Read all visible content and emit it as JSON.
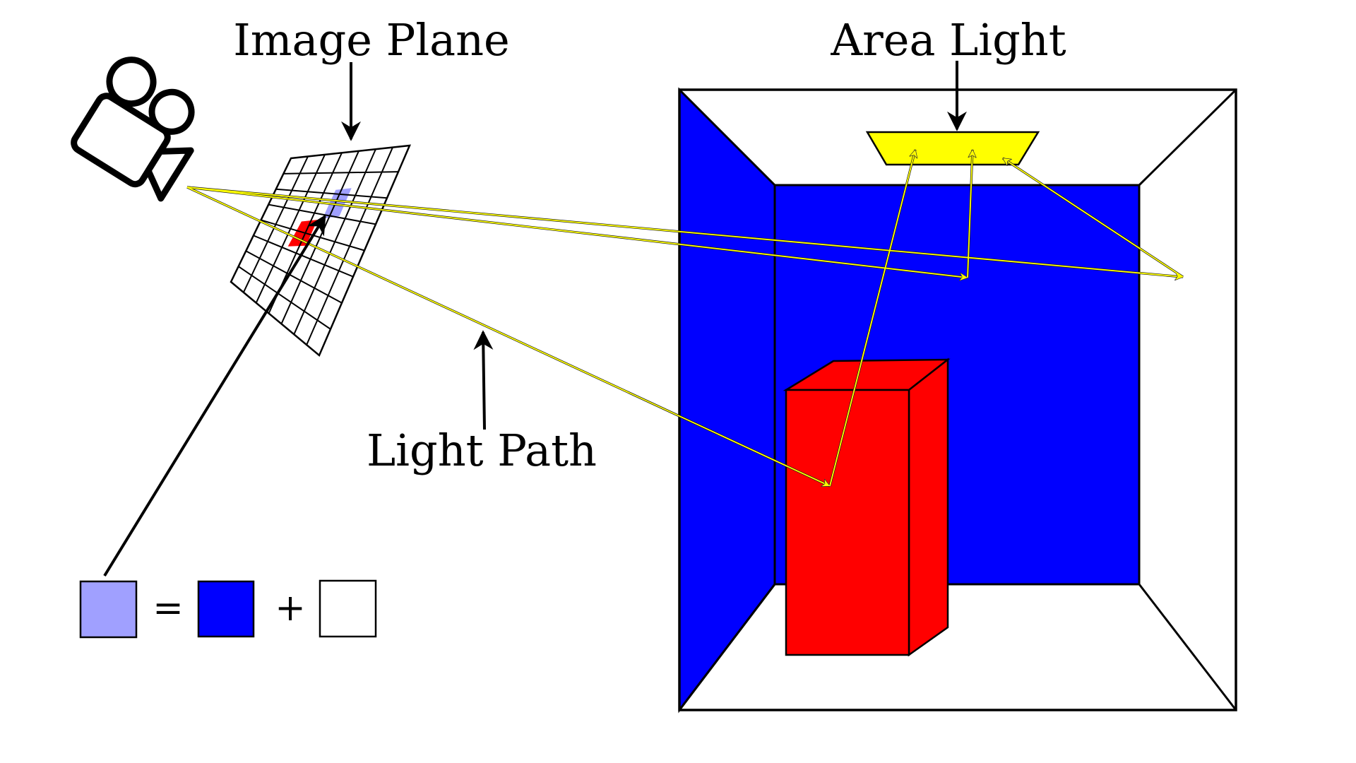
{
  "labels": {
    "image_plane": "Image Plane",
    "area_light": "Area Light",
    "light_path": "Light Path"
  },
  "equation": {
    "equals": "=",
    "plus": "+"
  },
  "icons": {
    "camera": "movie-camera-icon"
  },
  "colors": {
    "wall_blue": "#0000ff",
    "box_red": "#ff0000",
    "light_yellow": "#ffff00",
    "pixel_lavender": "#a0a0ff",
    "outline": "#000000"
  }
}
